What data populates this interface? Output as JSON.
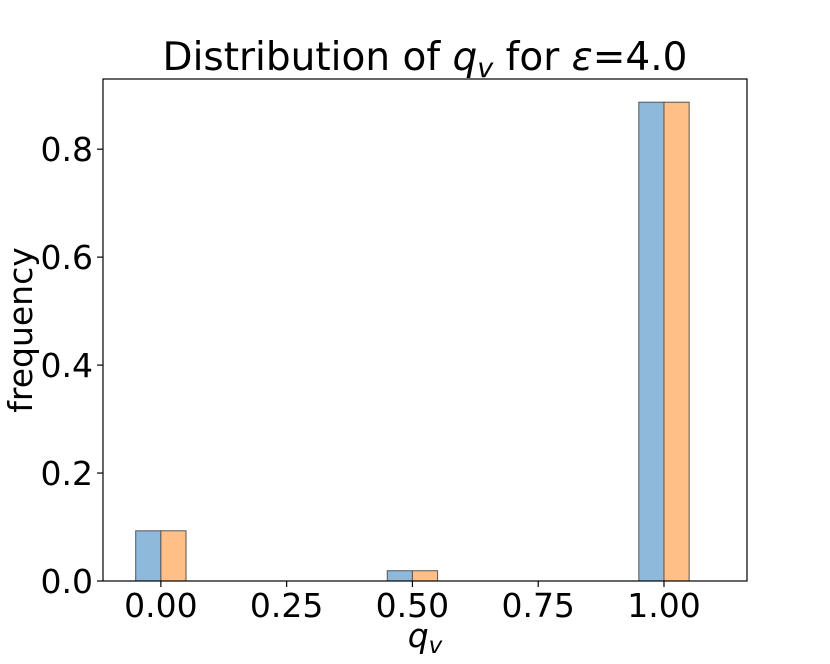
{
  "chart_data": {
    "type": "bar",
    "title_parts": {
      "prefix": "Distribution of ",
      "var": "q",
      "sub": "v",
      "middle": " for ",
      "eps": "ε",
      "suffix": "=4.0"
    },
    "xlabel_parts": {
      "var": "q",
      "sub": "v"
    },
    "ylabel": "frequency",
    "xlim": [
      -0.115,
      1.165
    ],
    "ylim": [
      0,
      0.93
    ],
    "x_ticks": [
      "0.00",
      "0.25",
      "0.50",
      "0.75",
      "1.00"
    ],
    "x_tick_values": [
      0,
      0.25,
      0.5,
      0.75,
      1.0
    ],
    "y_ticks": [
      "0.0",
      "0.2",
      "0.4",
      "0.6",
      "0.8"
    ],
    "y_tick_values": [
      0,
      0.2,
      0.4,
      0.6,
      0.8
    ],
    "bin_width": 0.05,
    "series": [
      {
        "values": [
          0.093,
          0.0,
          0.019,
          0.0,
          0.887
        ],
        "x": [
          -0.05,
          0.2,
          0.45,
          0.7,
          0.95
        ],
        "color": "#8fb9db"
      },
      {
        "values": [
          0.093,
          0.0,
          0.019,
          0.0,
          0.887
        ],
        "x": [
          0.0,
          0.25,
          0.5,
          0.75,
          1.0
        ],
        "color": "#ffbf86"
      }
    ],
    "grid": false,
    "legend": "none"
  }
}
